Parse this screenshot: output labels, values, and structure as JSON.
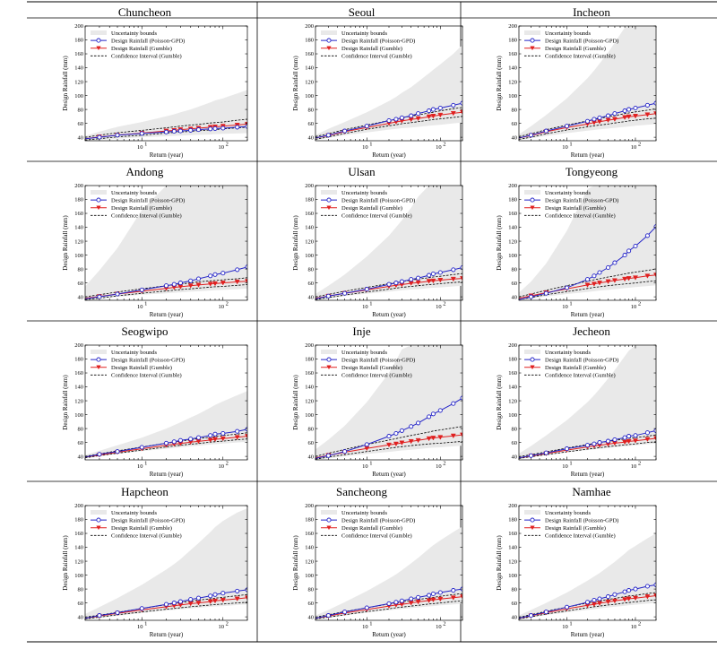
{
  "legend": {
    "band": "Uncertainty bounds",
    "gpd": "Design Rainfall (Poisson-GPD)",
    "gumble": "Design Rainfall (Gumble)",
    "ci": "Confidence Interval (Gumble)"
  },
  "colors": {
    "band": "#e9e9e9",
    "gpd": "#2525c8",
    "gumble": "#e02020",
    "ci": "#000000",
    "frame": "#000000"
  },
  "chart_data": {
    "type": "line",
    "xlabel": "Return (year)",
    "ylabel": "Design Rainfall (mm)",
    "xscale": "log",
    "xlim": [
      2,
      200
    ],
    "ylim": [
      35,
      200
    ],
    "yticks": [
      40,
      60,
      80,
      100,
      120,
      140,
      160,
      180,
      200
    ],
    "xticks": [
      {
        "value": 10,
        "base": "10",
        "exp": "1"
      },
      {
        "value": 100,
        "base": "10",
        "exp": "2"
      }
    ],
    "legend_position": "top-left",
    "grid": false,
    "return_periods": [
      2,
      3,
      5,
      10,
      20,
      25,
      30,
      40,
      50,
      70,
      80,
      100,
      150,
      200
    ],
    "panels": [
      {
        "title": "Chuncheon",
        "gpd": [
          38,
          40,
          43,
          45.5,
          47.5,
          48.5,
          49,
          50,
          51,
          52,
          52.5,
          53,
          54.5,
          55.5
        ],
        "gumble": [
          38,
          40.5,
          43,
          46,
          49,
          50,
          51,
          52,
          53,
          54.5,
          55,
          56,
          57.5,
          59
        ],
        "ci_lower": [
          36,
          38,
          40.5,
          43,
          46,
          47,
          47.5,
          48.5,
          49.5,
          50.5,
          51,
          52,
          53.5,
          54.5
        ],
        "ci_upper": [
          40,
          43,
          46.5,
          50,
          53.5,
          55,
          56,
          57.5,
          58.5,
          60.5,
          61,
          62,
          64.5,
          66
        ],
        "band_lower": [
          35,
          36,
          38,
          40,
          41.5,
          42,
          42.5,
          43,
          43.5,
          44,
          44.5,
          45,
          45.5,
          46
        ],
        "band_upper": [
          42,
          48,
          55,
          62,
          70,
          73,
          76,
          80,
          84,
          90,
          93,
          96,
          103,
          108
        ]
      },
      {
        "title": "Seoul",
        "gpd": [
          39,
          43,
          49,
          56,
          64,
          66,
          68,
          71,
          74,
          78,
          80,
          82,
          86,
          89
        ],
        "gumble": [
          39,
          42.5,
          48,
          54,
          60,
          62,
          63.5,
          65.5,
          67,
          69.5,
          70.5,
          72,
          74.5,
          76
        ],
        "ci_lower": [
          37,
          40.5,
          45.5,
          51.5,
          56.5,
          58,
          59.5,
          61,
          62.5,
          64.5,
          65.5,
          66.5,
          68.5,
          70
        ],
        "ci_upper": [
          41,
          45,
          51,
          57.5,
          64,
          66,
          68,
          70.5,
          72,
          75,
          76,
          78,
          81,
          83
        ],
        "band_lower": [
          36,
          39,
          43,
          47,
          51,
          52,
          53,
          54,
          55,
          56.5,
          57,
          58,
          60,
          61
        ],
        "band_upper": [
          43,
          52,
          62,
          76,
          92,
          98,
          104,
          112,
          120,
          132,
          137,
          145,
          160,
          173
        ]
      },
      {
        "title": "Incheon",
        "gpd": [
          39,
          43,
          49,
          56,
          63,
          66,
          68,
          71,
          74,
          78,
          80,
          82,
          86,
          89
        ],
        "gumble": [
          39,
          42.5,
          48,
          54,
          59,
          61,
          62.5,
          64.5,
          66,
          68.5,
          69.5,
          70.5,
          72.5,
          74
        ],
        "ci_lower": [
          37,
          40,
          45,
          50.5,
          55,
          56.5,
          57.5,
          59,
          60.5,
          62.5,
          63.5,
          64.5,
          66.5,
          67.5
        ],
        "ci_upper": [
          41,
          45,
          51,
          57.5,
          63.5,
          65.5,
          67,
          69.5,
          71,
          74,
          75,
          76.5,
          79,
          81
        ],
        "band_lower": [
          36,
          38.5,
          42,
          46,
          49.5,
          50.5,
          51.5,
          52.5,
          53.5,
          55,
          55.5,
          56.5,
          58,
          59
        ],
        "band_upper": [
          44,
          56,
          72,
          96,
          125,
          136,
          146,
          162,
          176,
          198,
          200,
          200,
          200,
          200
        ]
      },
      {
        "title": "Andong",
        "gpd": [
          37,
          40,
          44,
          50,
          56,
          58,
          60,
          63,
          66,
          70,
          72,
          74,
          79,
          83
        ],
        "gumble": [
          38,
          40.5,
          44,
          48,
          52,
          53.5,
          54.5,
          56,
          57,
          58.5,
          59,
          60,
          61.5,
          62.5
        ],
        "ci_lower": [
          36,
          38,
          41.5,
          45,
          48.5,
          49.5,
          50.5,
          51.5,
          52.5,
          54,
          54.5,
          55,
          56.5,
          57.5
        ],
        "ci_upper": [
          40,
          43,
          47,
          51.5,
          56,
          57.5,
          58.5,
          60,
          61.5,
          63,
          63.5,
          64.5,
          66,
          67.5
        ],
        "band_lower": [
          35,
          37,
          40,
          43,
          45,
          46,
          46.5,
          47.5,
          48,
          49,
          49.5,
          50,
          51,
          52
        ],
        "band_upper": [
          55,
          78,
          110,
          165,
          200,
          200,
          200,
          200,
          200,
          200,
          200,
          200,
          200,
          200
        ]
      },
      {
        "title": "Ulsan",
        "gpd": [
          37,
          41,
          45,
          51,
          58,
          60,
          62,
          65,
          67,
          71,
          73,
          75,
          79,
          82
        ],
        "gumble": [
          38,
          41,
          45,
          50,
          55,
          56.5,
          57.5,
          59.5,
          60.5,
          62.5,
          63,
          64,
          65.5,
          66.5
        ],
        "ci_lower": [
          36,
          39,
          42.5,
          47,
          51,
          52.5,
          53.5,
          55,
          56,
          57.5,
          58,
          59,
          60.5,
          61.5
        ],
        "ci_upper": [
          40,
          43.5,
          48,
          53.5,
          59,
          60.5,
          62,
          64,
          65.5,
          67.5,
          68.5,
          69.5,
          72,
          73.5
        ],
        "band_lower": [
          35,
          37.5,
          41,
          44.5,
          47.5,
          48.5,
          49.5,
          50.5,
          51,
          52.5,
          53,
          53.5,
          55,
          56
        ],
        "band_upper": [
          44,
          56,
          72,
          98,
          128,
          140,
          150,
          168,
          184,
          200,
          200,
          200,
          200,
          200
        ]
      },
      {
        "title": "Tongyeong",
        "gpd": [
          36,
          40,
          45,
          53,
          65,
          70,
          75,
          82,
          89,
          100,
          106,
          113,
          128,
          141
        ],
        "gumble": [
          38,
          41.5,
          46,
          51.5,
          57,
          58.5,
          60,
          62,
          63.5,
          65.5,
          66.5,
          67.5,
          70,
          71.5
        ],
        "ci_lower": [
          36,
          39,
          43,
          47.5,
          52,
          53.5,
          54.5,
          56,
          57,
          58.5,
          59,
          60,
          62,
          63
        ],
        "ci_upper": [
          40,
          44,
          49.5,
          56,
          62.5,
          64.5,
          66,
          68.5,
          70,
          73,
          74,
          75.5,
          78,
          80
        ],
        "band_lower": [
          35,
          37,
          40.5,
          44,
          47,
          48,
          49,
          50,
          51,
          52.5,
          53,
          54,
          55.5,
          56.5
        ],
        "band_upper": [
          46,
          62,
          88,
          135,
          195,
          200,
          200,
          200,
          200,
          200,
          200,
          200,
          200,
          200
        ]
      },
      {
        "title": "Seogwipo",
        "gpd": [
          39,
          43,
          47,
          53,
          59,
          61,
          63,
          65,
          67,
          70,
          72,
          73,
          76,
          79
        ],
        "gumble": [
          39,
          42,
          46,
          51,
          56,
          57.5,
          58.5,
          60.5,
          61.5,
          63.5,
          64.5,
          65.5,
          67.5,
          69
        ],
        "ci_lower": [
          38,
          41,
          44.5,
          49,
          53.5,
          55,
          56,
          57.5,
          58.5,
          60.5,
          61,
          62,
          64,
          65
        ],
        "ci_upper": [
          40,
          43.5,
          48,
          53.5,
          59,
          60.5,
          62,
          64,
          65.5,
          67.5,
          68.5,
          70,
          72,
          74
        ],
        "band_lower": [
          37,
          40,
          43.5,
          47.5,
          51,
          52,
          53,
          54.5,
          55.5,
          57,
          57.5,
          58.5,
          60,
          61
        ],
        "band_upper": [
          42,
          48,
          56,
          67,
          80,
          85,
          89,
          96,
          101,
          110,
          114,
          119,
          128,
          134
        ]
      },
      {
        "title": "Inje",
        "gpd": [
          37,
          41,
          47,
          57,
          69,
          73,
          77,
          83,
          88,
          97,
          101,
          106,
          116,
          124
        ],
        "gumble": [
          38,
          41.5,
          46,
          51.5,
          56.5,
          58,
          59.5,
          61.5,
          63,
          65.5,
          66.5,
          67.5,
          69.5,
          71
        ],
        "ci_lower": [
          36,
          39,
          42.5,
          47,
          51.5,
          53,
          54,
          55.5,
          56.5,
          58,
          58.5,
          59,
          60.5,
          61.5
        ],
        "ci_upper": [
          40,
          44.5,
          50,
          57,
          63.5,
          65.5,
          67.5,
          70,
          72,
          75,
          76.5,
          78,
          81,
          83
        ],
        "band_lower": [
          35,
          37,
          40,
          43.5,
          46.5,
          47.5,
          48.5,
          49.5,
          50.5,
          52,
          52.5,
          53,
          54.5,
          55.5
        ],
        "band_upper": [
          50,
          64,
          84,
          118,
          160,
          178,
          194,
          200,
          200,
          200,
          200,
          200,
          200,
          200
        ]
      },
      {
        "title": "Jecheon",
        "gpd": [
          38,
          41,
          45,
          51,
          56,
          58,
          60,
          62,
          64,
          67,
          69,
          70,
          74,
          77
        ],
        "gumble": [
          38,
          40.5,
          44,
          49,
          53.5,
          55,
          56,
          57.5,
          59,
          60.5,
          61.5,
          62.5,
          64.5,
          66
        ],
        "ci_lower": [
          37,
          39.5,
          42.5,
          46.5,
          50.5,
          51.5,
          52.5,
          54,
          55,
          56.5,
          57,
          58,
          60,
          61
        ],
        "ci_upper": [
          39.5,
          42.5,
          46.5,
          52,
          57,
          58.5,
          60,
          61.5,
          63,
          65,
          66,
          67,
          69,
          71
        ],
        "band_lower": [
          36,
          39,
          42,
          46,
          49,
          50,
          51,
          52,
          53,
          54.5,
          55,
          56,
          57.5,
          58.5
        ],
        "band_upper": [
          44,
          55,
          70,
          92,
          118,
          128,
          137,
          152,
          164,
          184,
          192,
          200,
          200,
          200
        ]
      },
      {
        "title": "Hapcheon",
        "gpd": [
          38,
          42,
          46,
          52,
          58,
          60,
          62,
          65,
          67,
          70,
          72,
          74,
          77,
          79
        ],
        "gumble": [
          38,
          41,
          45,
          50,
          54.5,
          56,
          57,
          59,
          60,
          62,
          63,
          64,
          66,
          67.5
        ],
        "ci_lower": [
          37,
          39.5,
          43,
          47,
          51,
          52,
          53,
          54.5,
          55.5,
          57,
          57.5,
          58.5,
          60,
          61
        ],
        "ci_upper": [
          39.5,
          42.5,
          46.5,
          52,
          57.5,
          59,
          60.5,
          62.5,
          64,
          66,
          67,
          68,
          70.5,
          72
        ],
        "band_lower": [
          36,
          38.5,
          41.5,
          45.5,
          49,
          50,
          51,
          52,
          53,
          54.5,
          55,
          55.5,
          57,
          58
        ],
        "band_upper": [
          44,
          54,
          67,
          86,
          108,
          116,
          123,
          136,
          146,
          162,
          169,
          178,
          190,
          196
        ]
      },
      {
        "title": "Sancheong",
        "gpd": [
          38,
          42,
          47,
          53,
          59,
          61,
          63,
          66,
          68,
          71,
          73,
          75,
          78,
          80
        ],
        "gumble": [
          38,
          41,
          45.5,
          50.5,
          55.5,
          57,
          58,
          60,
          61.5,
          63.5,
          64.5,
          65.5,
          67.5,
          69
        ],
        "ci_lower": [
          37,
          39.5,
          43,
          47.5,
          51.5,
          53,
          54,
          55.5,
          56.5,
          58.5,
          59,
          60,
          62,
          63
        ],
        "ci_upper": [
          39.5,
          43,
          47.5,
          53,
          58.5,
          60,
          61.5,
          63.5,
          65,
          67,
          68,
          69.5,
          72,
          73.5
        ],
        "band_lower": [
          36,
          38.5,
          42,
          46,
          49.5,
          50.5,
          51.5,
          52.5,
          53.5,
          55,
          55.5,
          56.5,
          58,
          59
        ],
        "band_upper": [
          42,
          50,
          61,
          77,
          95,
          101,
          107,
          117,
          125,
          138,
          143,
          150,
          162,
          170
        ]
      },
      {
        "title": "Namhae",
        "gpd": [
          38,
          42,
          47,
          54,
          61,
          64,
          66,
          69,
          72,
          76,
          78,
          80,
          84,
          86
        ],
        "gumble": [
          38,
          41.5,
          46,
          51.5,
          56.5,
          58,
          59.5,
          61.5,
          63,
          65,
          66,
          67,
          69,
          70.5
        ],
        "ci_lower": [
          37,
          40,
          44,
          48.5,
          53,
          54.5,
          55.5,
          57,
          58,
          60,
          60.5,
          61.5,
          63.5,
          64.5
        ],
        "ci_upper": [
          39.5,
          43,
          48,
          54,
          60,
          61.5,
          63,
          65,
          66.5,
          69,
          70,
          71,
          73.5,
          75
        ],
        "band_lower": [
          36,
          39,
          42.5,
          46.5,
          50,
          51,
          52,
          53.5,
          54.5,
          56,
          56.5,
          57.5,
          59,
          60
        ],
        "band_upper": [
          42,
          50,
          60,
          75,
          92,
          98,
          103,
          112,
          119,
          131,
          136,
          142,
          153,
          160
        ]
      }
    ]
  }
}
